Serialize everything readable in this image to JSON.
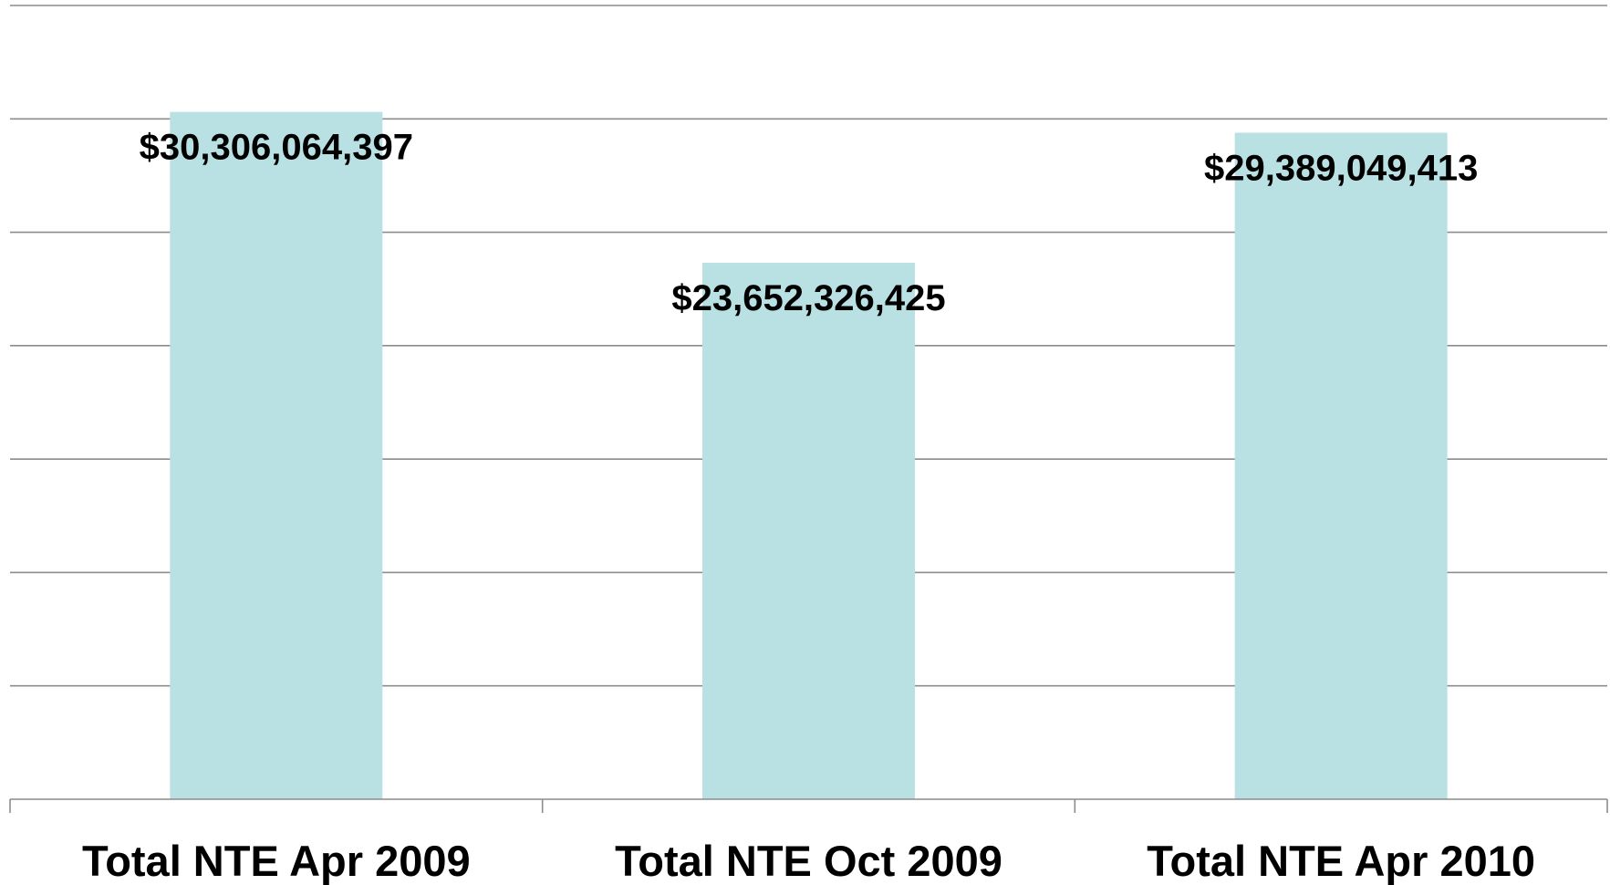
{
  "chart_data": {
    "type": "bar",
    "categories": [
      "Total NTE Apr 2009",
      "Total NTE Oct 2009",
      "Total NTE Apr 2010"
    ],
    "values": [
      30306064397,
      23652326425,
      29389049413
    ],
    "data_labels": [
      "$30,306,064,397",
      "$23,652,326,425",
      "$29,389,049,413"
    ],
    "title": "",
    "xlabel": "",
    "ylabel": "",
    "ylim": [
      0,
      35000000000
    ],
    "gridline_step": 5000000000,
    "grid": true,
    "legend": "none",
    "bar_color": "#b9e0e2",
    "grid_color": "#8c8c8c"
  }
}
